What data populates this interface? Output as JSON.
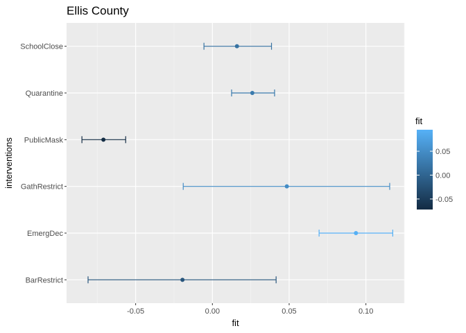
{
  "chart_data": {
    "type": "errorbar",
    "title": "Ellis County",
    "xlabel": "fit",
    "ylabel": "interventions",
    "xlim": [
      -0.095,
      0.125
    ],
    "xticks": [
      -0.05,
      0.0,
      0.05,
      0.1
    ],
    "xtick_labels": [
      "-0.05",
      "0.00",
      "0.05",
      "0.10"
    ],
    "categories": [
      "SchoolClose",
      "Quarantine",
      "PublicMask",
      "GathRestrict",
      "EmergDec",
      "BarRestrict"
    ],
    "points": [
      {
        "label": "SchoolClose",
        "fit": 0.016,
        "lower": -0.0055,
        "upper": 0.0385
      },
      {
        "label": "Quarantine",
        "fit": 0.026,
        "lower": 0.0125,
        "upper": 0.0405
      },
      {
        "label": "PublicMask",
        "fit": -0.071,
        "lower": -0.085,
        "upper": -0.0565
      },
      {
        "label": "GathRestrict",
        "fit": 0.0485,
        "lower": -0.019,
        "upper": 0.1155
      },
      {
        "label": "EmergDec",
        "fit": 0.0935,
        "lower": 0.0695,
        "upper": 0.1175
      },
      {
        "label": "BarRestrict",
        "fit": -0.0195,
        "lower": -0.081,
        "upper": 0.0415
      }
    ],
    "grid": true,
    "legend": {
      "title": "fit",
      "placement": "right",
      "range": [
        -0.072,
        0.095
      ],
      "ticks": [
        0.05,
        0.0,
        -0.05
      ],
      "tick_labels": [
        "0.05",
        "0.00",
        "-0.05"
      ],
      "color_low": "#132B43",
      "color_high": "#56B1F7"
    },
    "panel_color": "#EBEBEB"
  }
}
